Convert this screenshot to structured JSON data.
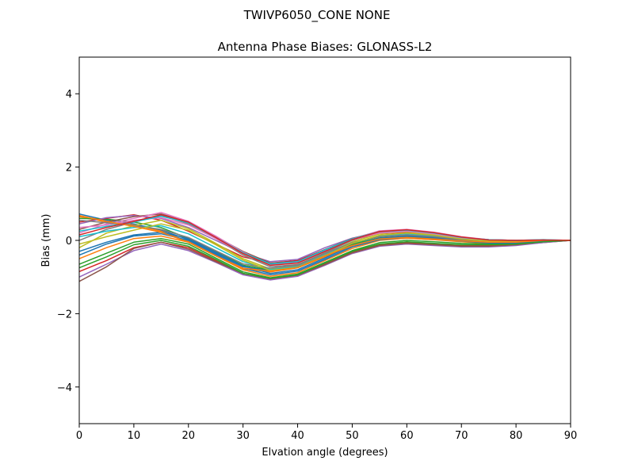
{
  "figure": {
    "suptitle": "TWIVP6050_CONE  NONE"
  },
  "chart_data": {
    "type": "line",
    "title": "Antenna Phase Biases: GLONASS-L2",
    "xlabel": "Elvation angle (degrees)",
    "ylabel": "Bias (mm)",
    "xlim": [
      0,
      90
    ],
    "ylim": [
      -5,
      5
    ],
    "xticks": [
      0,
      10,
      20,
      30,
      40,
      50,
      60,
      70,
      80,
      90
    ],
    "yticks": [
      -4,
      -2,
      0,
      2,
      4
    ],
    "ytick_labels": [
      "−4",
      "−2",
      "0",
      "2",
      "4"
    ],
    "grid": false,
    "legend": "none",
    "palette": [
      "#1f77b4",
      "#ff7f0e",
      "#2ca02c",
      "#d62728",
      "#9467bd",
      "#8c564b",
      "#e377c2",
      "#7f7f7f",
      "#bcbd22",
      "#17becf"
    ],
    "x": [
      0,
      5,
      10,
      15,
      20,
      25,
      30,
      35,
      40,
      45,
      50,
      55,
      60,
      65,
      70,
      75,
      80,
      85,
      90
    ],
    "series": [
      {
        "values": [
          0.72,
          0.55,
          0.45,
          0.28,
          0.02,
          -0.35,
          -0.72,
          -0.82,
          -0.72,
          -0.4,
          -0.12,
          0.05,
          0.1,
          0.06,
          0.0,
          -0.04,
          -0.04,
          0.0,
          0.0
        ]
      },
      {
        "values": [
          0.65,
          0.5,
          0.42,
          0.25,
          -0.03,
          -0.4,
          -0.78,
          -0.86,
          -0.75,
          -0.45,
          -0.16,
          0.02,
          0.06,
          0.02,
          -0.02,
          -0.06,
          -0.06,
          -0.02,
          0.0
        ]
      },
      {
        "values": [
          0.6,
          0.58,
          0.5,
          0.35,
          0.05,
          -0.3,
          -0.68,
          -0.8,
          -0.7,
          -0.38,
          -0.1,
          0.07,
          0.12,
          0.08,
          0.02,
          -0.02,
          -0.02,
          0.0,
          0.0
        ]
      },
      {
        "values": [
          0.5,
          0.6,
          0.7,
          0.55,
          0.25,
          -0.1,
          -0.45,
          -0.62,
          -0.55,
          -0.25,
          0.02,
          0.18,
          0.22,
          0.15,
          0.06,
          0.0,
          -0.02,
          0.0,
          0.0
        ]
      },
      {
        "values": [
          0.45,
          0.62,
          0.68,
          0.6,
          0.35,
          0.0,
          -0.35,
          -0.58,
          -0.52,
          -0.2,
          0.06,
          0.22,
          0.26,
          0.18,
          0.08,
          0.02,
          0.0,
          0.0,
          0.0
        ]
      },
      {
        "values": [
          0.3,
          0.5,
          0.65,
          0.72,
          0.5,
          0.1,
          -0.3,
          -0.62,
          -0.58,
          -0.25,
          0.05,
          0.25,
          0.28,
          0.2,
          0.08,
          0.02,
          0.0,
          0.0,
          0.0
        ]
      },
      {
        "values": [
          0.2,
          0.45,
          0.6,
          0.76,
          0.52,
          0.12,
          -0.32,
          -0.66,
          -0.6,
          -0.28,
          0.04,
          0.26,
          0.3,
          0.22,
          0.1,
          0.02,
          0.0,
          0.02,
          0.0
        ]
      },
      {
        "values": [
          0.0,
          0.3,
          0.5,
          0.68,
          0.45,
          0.05,
          -0.4,
          -0.72,
          -0.66,
          -0.34,
          0.0,
          0.22,
          0.28,
          0.2,
          0.08,
          0.0,
          -0.02,
          0.0,
          0.0
        ]
      },
      {
        "values": [
          -0.2,
          0.2,
          0.4,
          0.55,
          0.32,
          -0.08,
          -0.5,
          -0.78,
          -0.7,
          -0.38,
          -0.04,
          0.18,
          0.24,
          0.16,
          0.05,
          -0.02,
          -0.04,
          0.0,
          0.0
        ]
      },
      {
        "values": [
          0.1,
          0.25,
          0.35,
          0.4,
          0.18,
          -0.2,
          -0.58,
          -0.8,
          -0.72,
          -0.4,
          -0.08,
          0.12,
          0.18,
          0.12,
          0.04,
          -0.02,
          -0.04,
          0.0,
          0.0
        ]
      },
      {
        "values": [
          -0.3,
          -0.05,
          0.15,
          0.22,
          0.05,
          -0.32,
          -0.7,
          -0.9,
          -0.8,
          -0.48,
          -0.14,
          0.06,
          0.12,
          0.08,
          0.0,
          -0.06,
          -0.06,
          -0.02,
          0.0
        ]
      },
      {
        "values": [
          -0.5,
          -0.2,
          0.05,
          0.12,
          -0.05,
          -0.42,
          -0.8,
          -0.98,
          -0.88,
          -0.55,
          -0.22,
          0.0,
          0.06,
          0.02,
          -0.04,
          -0.08,
          -0.08,
          -0.02,
          0.0
        ]
      },
      {
        "values": [
          -0.65,
          -0.35,
          -0.05,
          0.05,
          -0.1,
          -0.48,
          -0.86,
          -1.02,
          -0.92,
          -0.6,
          -0.28,
          -0.06,
          0.0,
          -0.04,
          -0.08,
          -0.1,
          -0.1,
          -0.04,
          0.0
        ]
      },
      {
        "values": [
          -0.85,
          -0.55,
          -0.2,
          -0.05,
          -0.2,
          -0.55,
          -0.92,
          -1.06,
          -0.96,
          -0.64,
          -0.32,
          -0.12,
          -0.06,
          -0.1,
          -0.14,
          -0.14,
          -0.12,
          -0.06,
          0.0
        ]
      },
      {
        "values": [
          -1.0,
          -0.65,
          -0.28,
          -0.1,
          -0.28,
          -0.6,
          -0.94,
          -1.08,
          -0.98,
          -0.68,
          -0.36,
          -0.16,
          -0.1,
          -0.14,
          -0.18,
          -0.18,
          -0.14,
          -0.06,
          0.0
        ]
      },
      {
        "values": [
          -1.12,
          -0.72,
          -0.22,
          -0.05,
          -0.24,
          -0.58,
          -0.9,
          -1.04,
          -0.95,
          -0.66,
          -0.34,
          -0.14,
          -0.08,
          -0.12,
          -0.16,
          -0.16,
          -0.12,
          -0.04,
          0.0
        ]
      },
      {
        "values": [
          0.35,
          0.42,
          0.55,
          0.62,
          0.42,
          0.05,
          -0.36,
          -0.66,
          -0.6,
          -0.3,
          0.02,
          0.2,
          0.25,
          0.18,
          0.06,
          0.0,
          -0.02,
          0.0,
          0.0
        ]
      },
      {
        "values": [
          0.55,
          0.48,
          0.4,
          0.3,
          0.08,
          -0.28,
          -0.64,
          -0.76,
          -0.68,
          -0.36,
          -0.06,
          0.1,
          0.15,
          0.1,
          0.03,
          -0.02,
          -0.03,
          0.0,
          0.0
        ]
      },
      {
        "values": [
          -0.1,
          0.1,
          0.28,
          0.45,
          0.28,
          -0.12,
          -0.54,
          -0.82,
          -0.74,
          -0.42,
          -0.08,
          0.14,
          0.2,
          0.14,
          0.04,
          -0.02,
          -0.04,
          0.0,
          0.0
        ]
      },
      {
        "values": [
          0.25,
          0.38,
          0.5,
          0.66,
          0.48,
          0.08,
          -0.34,
          -0.64,
          -0.58,
          -0.26,
          0.04,
          0.24,
          0.28,
          0.2,
          0.08,
          0.02,
          0.0,
          0.02,
          0.0
        ]
      },
      {
        "values": [
          -0.4,
          -0.1,
          0.12,
          0.18,
          0.0,
          -0.38,
          -0.76,
          -0.94,
          -0.84,
          -0.52,
          -0.18,
          0.02,
          0.08,
          0.04,
          -0.02,
          -0.07,
          -0.07,
          -0.02,
          0.0
        ]
      },
      {
        "values": [
          0.68,
          0.52,
          0.38,
          0.22,
          -0.05,
          -0.42,
          -0.76,
          -0.84,
          -0.74,
          -0.42,
          -0.14,
          0.04,
          0.08,
          0.04,
          -0.01,
          -0.05,
          -0.05,
          0.0,
          0.0
        ]
      },
      {
        "values": [
          -0.75,
          -0.45,
          -0.12,
          0.0,
          -0.16,
          -0.52,
          -0.9,
          -1.04,
          -0.94,
          -0.62,
          -0.3,
          -0.1,
          -0.04,
          -0.08,
          -0.12,
          -0.12,
          -0.1,
          -0.04,
          0.0
        ]
      },
      {
        "values": [
          0.15,
          0.35,
          0.52,
          0.7,
          0.5,
          0.08,
          -0.36,
          -0.68,
          -0.62,
          -0.3,
          0.02,
          0.24,
          0.29,
          0.21,
          0.09,
          0.01,
          0.0,
          0.01,
          0.0
        ]
      }
    ]
  }
}
